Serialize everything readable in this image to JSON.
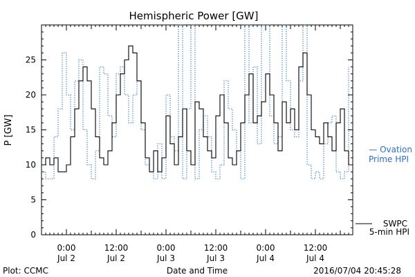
{
  "chart_data": {
    "type": "line",
    "title": "Hemispheric Power [GW]",
    "xlabel": "Date and Time",
    "ylabel": "P [GW]",
    "xlim": [
      "2016-07-01T18:00",
      "2016-07-04T21:00"
    ],
    "ylim": [
      0,
      30
    ],
    "y_ticks": [
      0,
      5,
      10,
      15,
      20,
      25
    ],
    "x_ticks": [
      {
        "t": "2016-07-02T00:00",
        "time": "0:00",
        "date": "Jul 2"
      },
      {
        "t": "2016-07-02T12:00",
        "time": "12:00",
        "date": "Jul 2"
      },
      {
        "t": "2016-07-03T00:00",
        "time": "0:00",
        "date": "Jul 3"
      },
      {
        "t": "2016-07-03T12:00",
        "time": "12:00",
        "date": "Jul 3"
      },
      {
        "t": "2016-07-04T00:00",
        "time": "0:00",
        "date": "Jul 4"
      },
      {
        "t": "2016-07-04T12:00",
        "time": "12:00",
        "date": "Jul 4"
      }
    ],
    "grid": false,
    "series": [
      {
        "name": "SWPC 5-min HPI",
        "color": "#000000",
        "style": "solid",
        "x": [
          "2016-07-01T18:00",
          "2016-07-01T19:00",
          "2016-07-01T20:00",
          "2016-07-01T21:00",
          "2016-07-01T22:00",
          "2016-07-01T23:00",
          "2016-07-02T00:00",
          "2016-07-02T01:00",
          "2016-07-02T02:00",
          "2016-07-02T03:00",
          "2016-07-02T04:00",
          "2016-07-02T05:00",
          "2016-07-02T06:00",
          "2016-07-02T07:00",
          "2016-07-02T08:00",
          "2016-07-02T09:00",
          "2016-07-02T10:00",
          "2016-07-02T11:00",
          "2016-07-02T12:00",
          "2016-07-02T13:00",
          "2016-07-02T14:00",
          "2016-07-02T15:00",
          "2016-07-02T16:00",
          "2016-07-02T17:00",
          "2016-07-02T18:00",
          "2016-07-02T19:00",
          "2016-07-02T20:00",
          "2016-07-02T21:00",
          "2016-07-02T22:00",
          "2016-07-02T23:00",
          "2016-07-03T00:00",
          "2016-07-03T01:00",
          "2016-07-03T02:00",
          "2016-07-03T03:00",
          "2016-07-03T04:00",
          "2016-07-03T05:00",
          "2016-07-03T06:00",
          "2016-07-03T07:00",
          "2016-07-03T08:00",
          "2016-07-03T09:00",
          "2016-07-03T10:00",
          "2016-07-03T11:00",
          "2016-07-03T12:00",
          "2016-07-03T13:00",
          "2016-07-03T14:00",
          "2016-07-03T15:00",
          "2016-07-03T16:00",
          "2016-07-03T17:00",
          "2016-07-03T18:00",
          "2016-07-03T19:00",
          "2016-07-03T20:00",
          "2016-07-03T21:00",
          "2016-07-03T22:00",
          "2016-07-03T23:00",
          "2016-07-04T00:00",
          "2016-07-04T01:00",
          "2016-07-04T02:00",
          "2016-07-04T03:00",
          "2016-07-04T04:00",
          "2016-07-04T05:00",
          "2016-07-04T06:00",
          "2016-07-04T07:00",
          "2016-07-04T08:00",
          "2016-07-04T09:00",
          "2016-07-04T10:00",
          "2016-07-04T11:00",
          "2016-07-04T12:00",
          "2016-07-04T13:00",
          "2016-07-04T14:00",
          "2016-07-04T15:00",
          "2016-07-04T16:00",
          "2016-07-04T17:00",
          "2016-07-04T18:00",
          "2016-07-04T19:00",
          "2016-07-04T20:00"
        ],
        "y": [
          10,
          11,
          10,
          11,
          9,
          9,
          10,
          14,
          18,
          22,
          24,
          22,
          18,
          14,
          11,
          10,
          12,
          16,
          20,
          23,
          25,
          27,
          26,
          22,
          16,
          11,
          9,
          12,
          9,
          11,
          17,
          13,
          10,
          14,
          18,
          12,
          10,
          19,
          18,
          14,
          12,
          11,
          17,
          20,
          16,
          11,
          10,
          12,
          16,
          20,
          23,
          16,
          17,
          19,
          23,
          20,
          16,
          12,
          19,
          16,
          18,
          15,
          24,
          26,
          20,
          15,
          14,
          13,
          16,
          14,
          12,
          16,
          18,
          12,
          10
        ]
      },
      {
        "name": "Ovation Prime HPI",
        "color": "#2a6fc9",
        "style": "dotted",
        "x": [
          "2016-07-01T18:00",
          "2016-07-01T19:00",
          "2016-07-01T20:00",
          "2016-07-01T21:00",
          "2016-07-01T22:00",
          "2016-07-01T23:00",
          "2016-07-02T00:00",
          "2016-07-02T01:00",
          "2016-07-02T02:00",
          "2016-07-02T03:00",
          "2016-07-02T04:00",
          "2016-07-02T05:00",
          "2016-07-02T06:00",
          "2016-07-02T07:00",
          "2016-07-02T08:00",
          "2016-07-02T09:00",
          "2016-07-02T10:00",
          "2016-07-02T11:00",
          "2016-07-02T12:00",
          "2016-07-02T13:00",
          "2016-07-02T14:00",
          "2016-07-02T15:00",
          "2016-07-02T16:00",
          "2016-07-02T17:00",
          "2016-07-02T18:00",
          "2016-07-02T19:00",
          "2016-07-02T20:00",
          "2016-07-02T21:00",
          "2016-07-02T22:00",
          "2016-07-02T23:00",
          "2016-07-03T00:00",
          "2016-07-03T01:00",
          "2016-07-03T02:00",
          "2016-07-03T03:00",
          "2016-07-03T04:00",
          "2016-07-03T05:00",
          "2016-07-03T06:00",
          "2016-07-03T07:00",
          "2016-07-03T08:00",
          "2016-07-03T09:00",
          "2016-07-03T10:00",
          "2016-07-03T11:00",
          "2016-07-03T12:00",
          "2016-07-03T13:00",
          "2016-07-03T14:00",
          "2016-07-03T15:00",
          "2016-07-03T16:00",
          "2016-07-03T17:00",
          "2016-07-03T18:00",
          "2016-07-03T19:00",
          "2016-07-03T20:00",
          "2016-07-03T21:00",
          "2016-07-03T22:00",
          "2016-07-03T23:00",
          "2016-07-04T00:00",
          "2016-07-04T01:00",
          "2016-07-04T02:00",
          "2016-07-04T03:00",
          "2016-07-04T04:00",
          "2016-07-04T05:00",
          "2016-07-04T06:00",
          "2016-07-04T07:00",
          "2016-07-04T08:00",
          "2016-07-04T09:00",
          "2016-07-04T10:00",
          "2016-07-04T11:00",
          "2016-07-04T12:00",
          "2016-07-04T13:00",
          "2016-07-04T14:00",
          "2016-07-04T15:00",
          "2016-07-04T16:00",
          "2016-07-04T17:00",
          "2016-07-04T18:00",
          "2016-07-04T19:00",
          "2016-07-04T20:00"
        ],
        "y": [
          9,
          8,
          8,
          14,
          18,
          26,
          20,
          15,
          22,
          25,
          15,
          10,
          8,
          12,
          24,
          23,
          17,
          14,
          23,
          24,
          20,
          16,
          20,
          22,
          15,
          10,
          9,
          8,
          13,
          8,
          20,
          14,
          12,
          30,
          8,
          18,
          30,
          8,
          15,
          17,
          14,
          9,
          8,
          10,
          22,
          18,
          15,
          12,
          8,
          30,
          16,
          24,
          13,
          30,
          30,
          17,
          13,
          14,
          30,
          22,
          15,
          14,
          22,
          30,
          10,
          8,
          9,
          8,
          13,
          16,
          17,
          9,
          8,
          9,
          24
        ]
      }
    ],
    "legend": [
      {
        "lines": [
          "SWPC",
          "5-min HPI"
        ],
        "color": "#000000",
        "marker": "solid-line"
      },
      {
        "lines": [
          "— Ovation",
          "Prime HPI"
        ],
        "color": "#2a6fc9",
        "marker": "none"
      }
    ]
  },
  "footer": {
    "left": "Plot: CCMC",
    "right": "2016/07/04 20:45:28"
  }
}
